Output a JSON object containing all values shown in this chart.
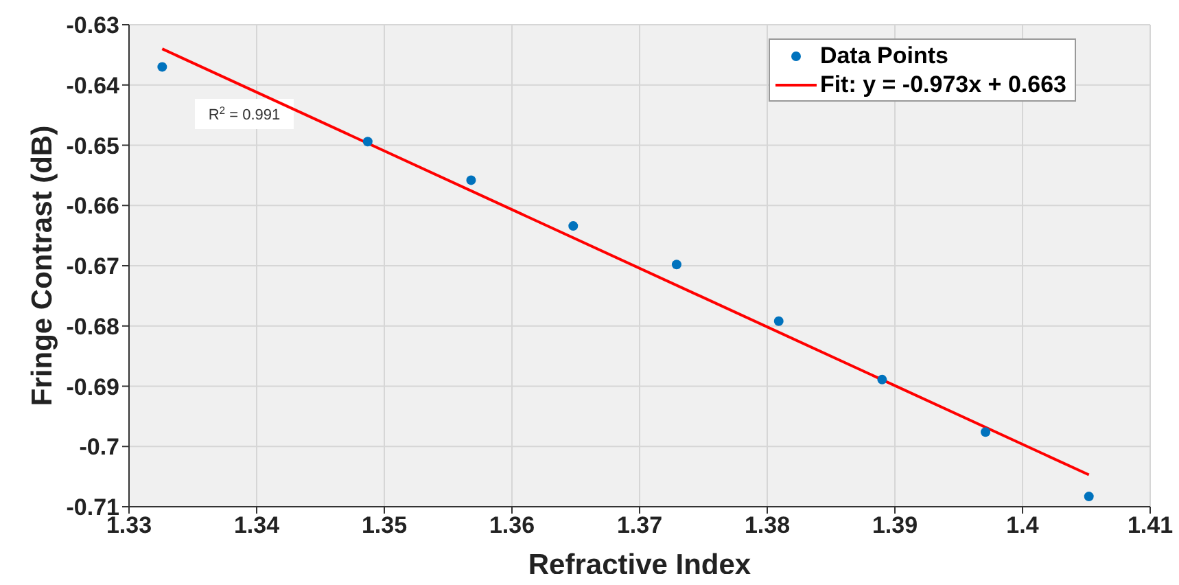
{
  "chart_data": {
    "type": "scatter",
    "xlabel": "Refractive Index",
    "ylabel": "Fringe Contrast (dB)",
    "xlim": [
      1.33,
      1.41
    ],
    "xticks": [
      1.33,
      1.34,
      1.35,
      1.36,
      1.37,
      1.38,
      1.39,
      1.4,
      1.41
    ],
    "ylim": [
      -0.71,
      -0.63
    ],
    "yticks": [
      -0.71,
      -0.7,
      -0.69,
      -0.68,
      -0.67,
      -0.66,
      -0.65,
      -0.64,
      -0.63
    ],
    "grid": true,
    "legend": "top right",
    "marker": "circle",
    "series": [
      {
        "name": "Data Points",
        "color": "#0072bd",
        "x": [
          1.3326,
          1.3487,
          1.3568,
          1.3648,
          1.3729,
          1.3809,
          1.389,
          1.3971,
          1.4052
        ],
        "values": [
          -0.637,
          -0.6494,
          -0.6558,
          -0.6634,
          -0.6698,
          -0.6792,
          -0.6889,
          -0.6976,
          -0.7083
        ]
      },
      {
        "name": "Fit: y = -0.973x + 0.663",
        "type": "line",
        "marker": "none",
        "line_style": "solid",
        "color": "#ff0000",
        "x": [
          1.3326,
          1.4052
        ],
        "values": [
          -0.634,
          -0.7047
        ]
      }
    ],
    "annotations": [
      "R$^{2}$ = 0.991"
    ]
  }
}
